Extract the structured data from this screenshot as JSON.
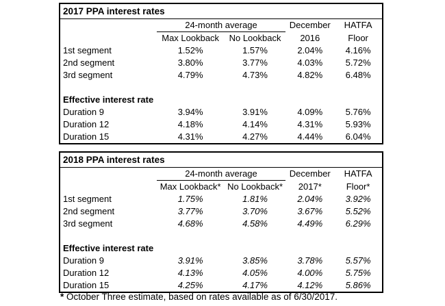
{
  "colors": {
    "background": "#ffffff",
    "text": "#000000",
    "border": "#000000"
  },
  "tables": [
    {
      "title": "2017 PPA interest rates",
      "group_header": "24-month average",
      "top_right_headers": [
        "December",
        "HATFA"
      ],
      "sub_headers": [
        "Max Lookback",
        "No Lookback",
        "2016",
        "Floor"
      ],
      "segment_rows": [
        [
          "1st segment",
          "1.52%",
          "1.57%",
          "2.04%",
          "4.16%"
        ],
        [
          "2nd segment",
          "3.80%",
          "3.77%",
          "4.03%",
          "5.72%"
        ],
        [
          "3rd segment",
          "4.79%",
          "4.73%",
          "4.82%",
          "6.48%"
        ]
      ],
      "section_header": "Effective interest rate",
      "duration_rows": [
        [
          "Duration 9",
          "3.94%",
          "3.91%",
          "4.09%",
          "5.76%"
        ],
        [
          "Duration 12",
          "4.18%",
          "4.14%",
          "4.31%",
          "5.93%"
        ],
        [
          "Duration 15",
          "4.31%",
          "4.27%",
          "4.44%",
          "6.04%"
        ]
      ]
    },
    {
      "title": "2018 PPA interest rates",
      "group_header": "24-month average",
      "top_right_headers": [
        "December",
        "HATFA"
      ],
      "sub_headers": [
        "Max Lookback*",
        "No Lookback*",
        "2017*",
        "Floor*"
      ],
      "segment_rows": [
        [
          "1st segment",
          "1.75%",
          "1.81%",
          "2.04%",
          "3.92%"
        ],
        [
          "2nd segment",
          "3.77%",
          "3.70%",
          "3.67%",
          "5.52%"
        ],
        [
          "3rd segment",
          "4.68%",
          "4.58%",
          "4.49%",
          "6.29%"
        ]
      ],
      "section_header": "Effective interest rate",
      "duration_rows": [
        [
          "Duration 9",
          "3.91%",
          "3.85%",
          "3.78%",
          "5.57%"
        ],
        [
          "Duration 12",
          "4.13%",
          "4.05%",
          "4.00%",
          "5.75%"
        ],
        [
          "Duration 15",
          "4.25%",
          "4.17%",
          "4.12%",
          "5.86%"
        ]
      ]
    }
  ],
  "footnote": {
    "marker": "*",
    "text": " October Three estimate, based on rates available as of 6/30/2017."
  }
}
